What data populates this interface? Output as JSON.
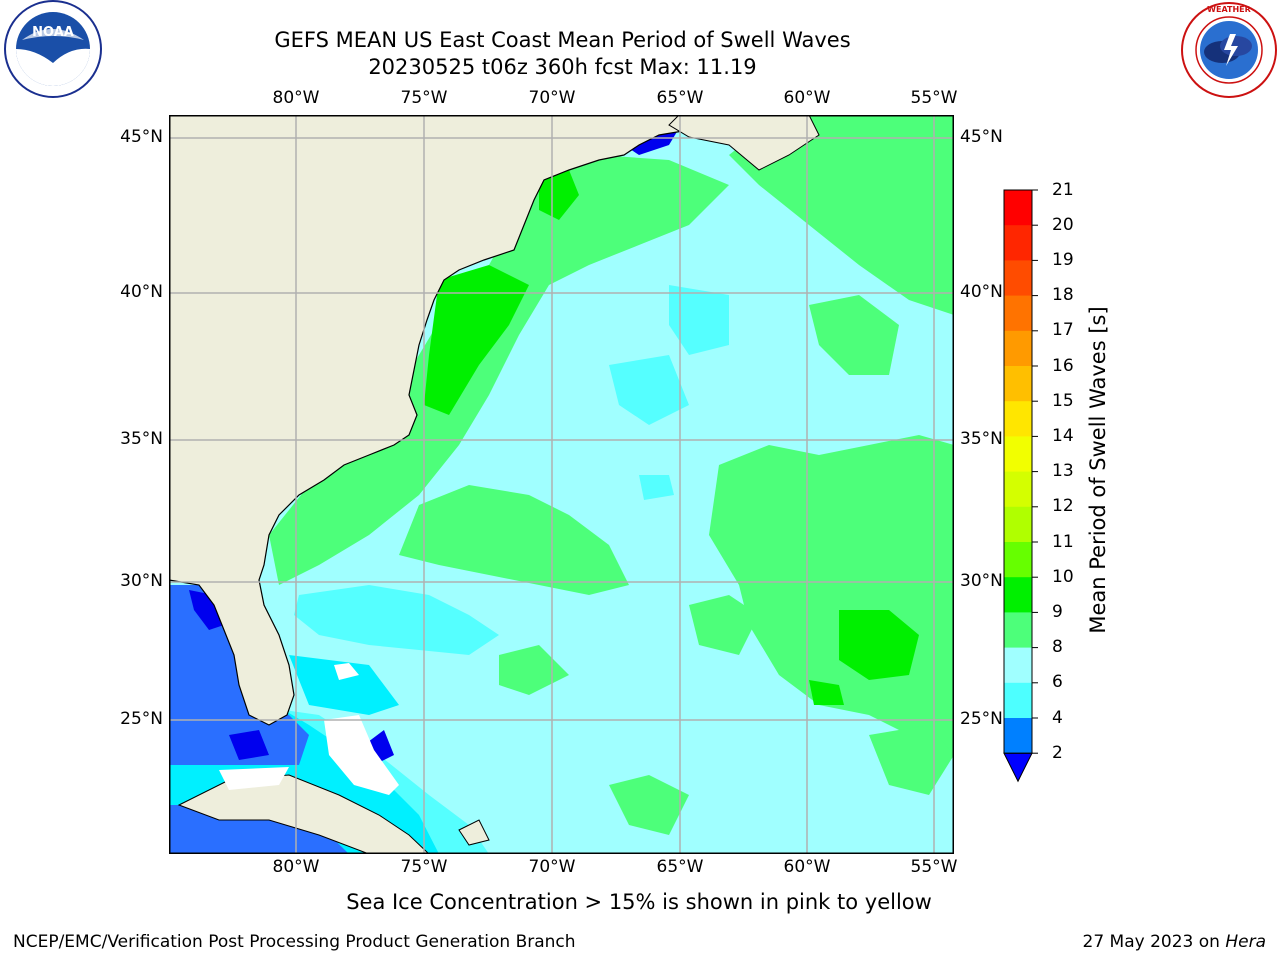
{
  "title": "GEFS MEAN US East Coast Mean Period of Swell Waves",
  "subtitle": "20230525 t06z 360h fcst   Max: 11.19",
  "lon_labels": [
    "80°W",
    "75°W",
    "70°W",
    "65°W",
    "60°W",
    "55°W"
  ],
  "lat_labels": [
    "45°N",
    "40°N",
    "35°N",
    "30°N",
    "25°N"
  ],
  "colorbar": {
    "title": "Mean Period of Swell Waves [s]",
    "ticks": [
      "21",
      "20",
      "19",
      "18",
      "17",
      "16",
      "15",
      "14",
      "13",
      "12",
      "11",
      "10",
      "9",
      "8",
      "6",
      "4",
      "2"
    ],
    "colors": [
      "#ff0000",
      "#ff2600",
      "#ff4c00",
      "#ff7300",
      "#ff9a00",
      "#ffbf00",
      "#ffe600",
      "#f2ff00",
      "#d4ff00",
      "#b0ff00",
      "#66ff00",
      "#00f000",
      "#4dff7a",
      "#a0ffff",
      "#4dffff",
      "#00ffff",
      "#0080ff"
    ],
    "extend_color": "#0000ff"
  },
  "map_colors": {
    "land": "#eeeedc",
    "period_2_4": "#2a6fff",
    "period_lt_2": "#0000ee",
    "period_4_6": "#00f0ff",
    "period_6_8": "#55ffff",
    "period_8_9": "#a0ffff",
    "period_9_10": "#4dff7a",
    "period_10_11": "#00f000",
    "grid": "#b0b0b0"
  },
  "note": "Sea Ice Concentration > 15% is shown in pink to yellow",
  "footer_left": "NCEP/EMC/Verification Post Processing Product Generation Branch",
  "footer_date": "27 May 2023 on ",
  "footer_machine": "Hera",
  "logo_left_text": "NOAA",
  "logo_left_ring": "NATIONAL OCEANIC AND ATMOSPHERIC ADMINISTRATION · U.S. DEPARTMENT OF COMMERCE",
  "logo_right_ring": "NATIONAL WEATHER SERVICE"
}
